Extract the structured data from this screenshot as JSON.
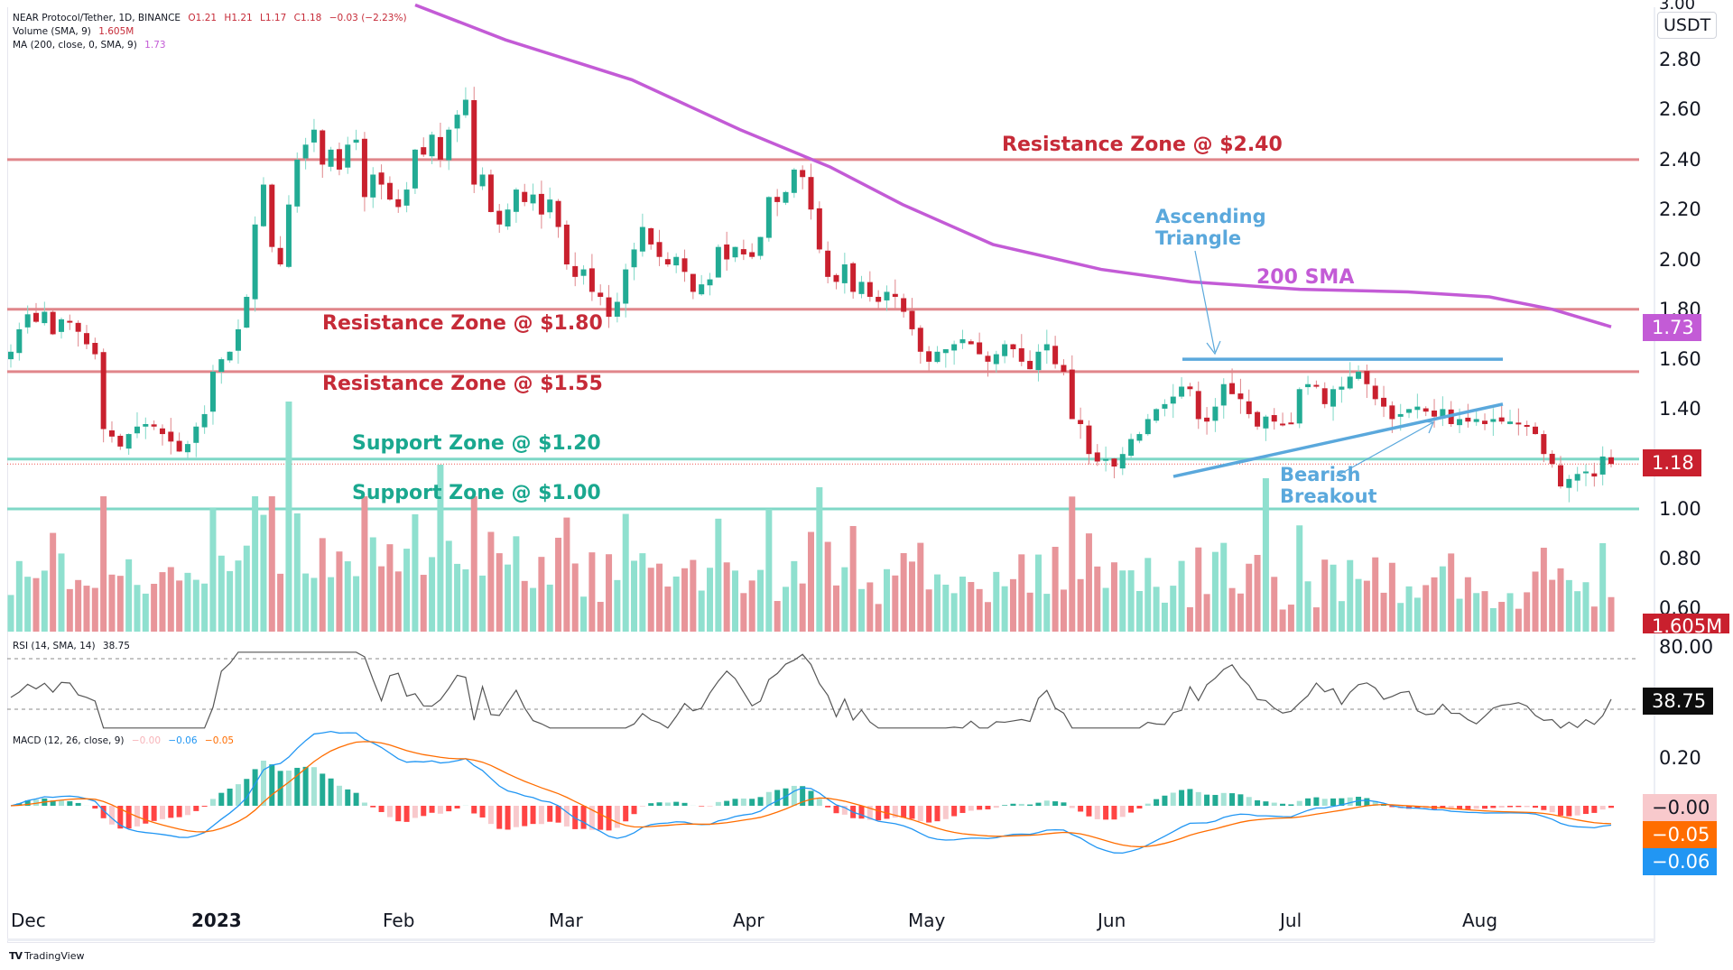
{
  "header": {
    "symbol_line": "NEAR Protocol/Tether, 1D, BINANCE",
    "ohlc": {
      "open": "O1.21",
      "high": "H1.21",
      "low": "L1.17",
      "close": "C1.18",
      "change": "−0.03 (−2.23%)"
    },
    "volume_line": "Volume (SMA, 9)",
    "volume_value": "1.605M",
    "ma_line": "MA (200, close, 0, SMA, 9)",
    "ma_value": "1.73"
  },
  "rsi_legend": {
    "label": "RSI (14, SMA, 14)",
    "value": "38.75"
  },
  "macd_legend": {
    "label": "MACD (12, 26, close, 9)",
    "hist": "−0.00",
    "macd": "−0.06",
    "signal": "−0.05"
  },
  "price_axis": {
    "currency_badge": "USDT",
    "top_cut_label": "3.00",
    "ticks": [
      "2.80",
      "2.60",
      "2.40",
      "2.20",
      "2.00",
      "1.80",
      "1.60",
      "1.40",
      "1.00",
      "0.80",
      "0.60"
    ],
    "ma_tag": "1.73",
    "last_price_tag": "1.18",
    "volume_tag": "1.605M"
  },
  "rsi_axis": {
    "ticks": [
      "80.00"
    ],
    "value_tag": "38.75"
  },
  "macd_axis": {
    "ticks": [
      "0.20"
    ],
    "hist_tag": "−0.00",
    "signal_tag": "−0.05",
    "macd_tag": "−0.06"
  },
  "time_axis": {
    "labels": [
      "Dec",
      "2023",
      "Feb",
      "Mar",
      "Apr",
      "May",
      "Jun",
      "Jul",
      "Aug"
    ]
  },
  "annotations": {
    "res_240": "Resistance Zone @ $2.40",
    "res_180": "Resistance Zone @ $1.80",
    "res_155": "Resistance Zone @ $1.55",
    "sup_120": "Support Zone @ $1.20",
    "sup_100": "Support Zone @ $1.00",
    "ascending_triangle": [
      "Ascending",
      "Triangle"
    ],
    "sma_label": "200 SMA",
    "bearish_breakout": [
      "Bearish",
      "Breakout"
    ]
  },
  "footer": {
    "brand": "TradingView"
  },
  "colors": {
    "up": "#26a69a",
    "down": "#ef5350",
    "up_candle": "#22ab94",
    "down_candle": "#c9202e",
    "resistance": "#e0868b",
    "resistance_text": "#c62b38",
    "support": "#7fd8c7",
    "support_text": "#1aa88f",
    "sma": "#c35bd6",
    "pattern": "#5aa8dc",
    "macd": "#2196f3",
    "signal": "#ff6d00",
    "rsi": "#555555",
    "last_price": "#c9202e",
    "ma_tag": "#c35bd6"
  },
  "chart_data": {
    "type": "candlestick",
    "title": "NEAR Protocol/Tether, 1D, BINANCE",
    "ylabel": "USDT",
    "ylim": [
      0.55,
      3.0
    ],
    "x_range": [
      "Dec 2022",
      "Aug 2023"
    ],
    "time_ticks": [
      "Dec",
      "2023",
      "Feb",
      "Mar",
      "Apr",
      "May",
      "Jun",
      "Jul",
      "Aug"
    ],
    "last": {
      "open": 1.21,
      "high": 1.21,
      "low": 1.17,
      "close": 1.18,
      "change": -0.03,
      "change_pct": -2.23
    },
    "horizontal_levels": [
      {
        "name": "Resistance Zone",
        "price": 2.4
      },
      {
        "name": "Resistance Zone",
        "price": 1.8
      },
      {
        "name": "Resistance Zone",
        "price": 1.55
      },
      {
        "name": "Support Zone",
        "price": 1.2
      },
      {
        "name": "Support Zone",
        "price": 1.0
      }
    ],
    "patterns": [
      {
        "name": "Ascending Triangle",
        "top": 1.6,
        "bottom_start": 1.13,
        "bottom_end": 1.42,
        "period": "mid-Jun to early Aug"
      },
      {
        "name": "Bearish Breakout",
        "period": "early Aug",
        "price": 1.33
      }
    ],
    "close_path": [
      1.63,
      1.72,
      1.78,
      1.75,
      1.79,
      1.7,
      1.76,
      1.75,
      1.71,
      1.66,
      1.62,
      1.32,
      1.29,
      1.25,
      1.3,
      1.33,
      1.34,
      1.33,
      1.3,
      1.27,
      1.23,
      1.26,
      1.33,
      1.38,
      1.55,
      1.6,
      1.63,
      1.72,
      1.85,
      2.14,
      2.3,
      2.05,
      1.98,
      2.22,
      2.4,
      2.46,
      2.52,
      2.38,
      2.44,
      2.36,
      2.46,
      2.48,
      2.25,
      2.34,
      2.3,
      2.24,
      2.21,
      2.28,
      2.44,
      2.42,
      2.5,
      2.4,
      2.52,
      2.58,
      2.64,
      2.3,
      2.34,
      2.19,
      2.14,
      2.2,
      2.28,
      2.23,
      2.26,
      2.18,
      2.24,
      2.13,
      1.98,
      1.93,
      1.96,
      1.87,
      1.85,
      1.77,
      1.83,
      1.96,
      2.04,
      2.13,
      2.06,
      2.01,
      1.98,
      2.01,
      1.95,
      1.87,
      1.9,
      1.92,
      2.05,
      2.0,
      2.05,
      2.02,
      2.01,
      2.09,
      2.25,
      2.23,
      2.27,
      2.36,
      2.33,
      2.2,
      2.04,
      1.93,
      1.91,
      1.98,
      1.87,
      1.91,
      1.85,
      1.83,
      1.87,
      1.85,
      1.79,
      1.72,
      1.63,
      1.59,
      1.63,
      1.64,
      1.66,
      1.68,
      1.66,
      1.62,
      1.59,
      1.62,
      1.66,
      1.64,
      1.59,
      1.56,
      1.63,
      1.66,
      1.58,
      1.55,
      1.36,
      1.34,
      1.22,
      1.19,
      1.2,
      1.17,
      1.22,
      1.28,
      1.3,
      1.36,
      1.4,
      1.42,
      1.45,
      1.49,
      1.48,
      1.36,
      1.35,
      1.41,
      1.5,
      1.46,
      1.44,
      1.38,
      1.33,
      1.37,
      1.35,
      1.34,
      1.34,
      1.48,
      1.5,
      1.49,
      1.42,
      1.48,
      1.49,
      1.53,
      1.55,
      1.5,
      1.44,
      1.41,
      1.36,
      1.38,
      1.4,
      1.41,
      1.39,
      1.37,
      1.4,
      1.34,
      1.36,
      1.35,
      1.36,
      1.34,
      1.36,
      1.35,
      1.35,
      1.34,
      1.33,
      1.3,
      1.22,
      1.18,
      1.09,
      1.12,
      1.14,
      1.15,
      1.13,
      1.21,
      1.18
    ],
    "sma200_path": [
      [
        460,
        3.02
      ],
      [
        560,
        2.88
      ],
      [
        700,
        2.72
      ],
      [
        820,
        2.52
      ],
      [
        920,
        2.37
      ],
      [
        1000,
        2.22
      ],
      [
        1100,
        2.06
      ],
      [
        1220,
        1.96
      ],
      [
        1320,
        1.91
      ],
      [
        1440,
        1.88
      ],
      [
        1560,
        1.87
      ],
      [
        1650,
        1.85
      ],
      [
        1720,
        1.8
      ],
      [
        1785,
        1.73
      ]
    ],
    "volume_scale_note": "relative heights 0-1",
    "rsi": {
      "overbought": 80,
      "oversold_band": 40,
      "last": 38.75
    },
    "macd": {
      "hist_last": -0.0,
      "macd_last": -0.06,
      "signal_last": -0.05,
      "axis_tick": 0.2
    }
  }
}
